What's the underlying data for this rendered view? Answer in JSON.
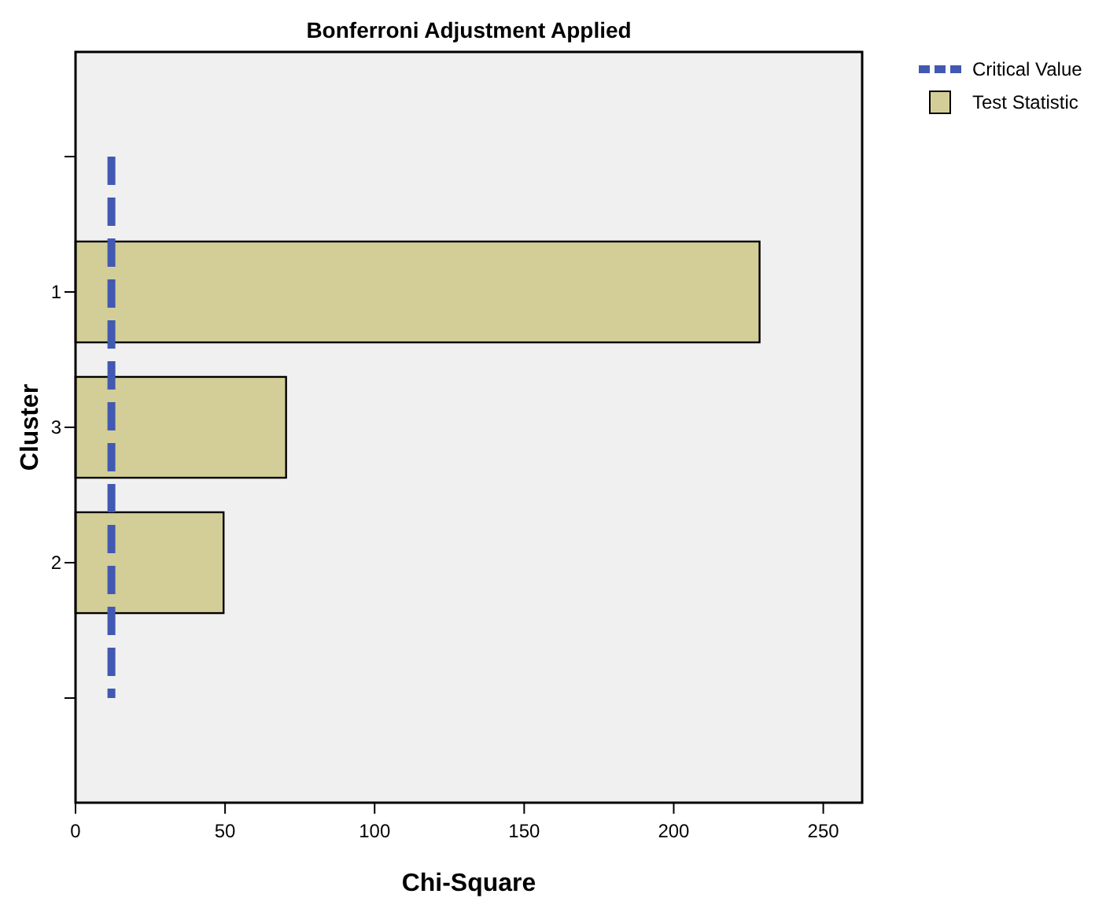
{
  "chart_data": {
    "type": "bar",
    "orientation": "horizontal",
    "title": "Bonferroni Adjustment Applied",
    "xlabel": "Chi-Square",
    "ylabel": "Cluster",
    "categories": [
      null,
      "1",
      "3",
      "2",
      null
    ],
    "series": [
      {
        "name": "Test Statistic",
        "color": "#d3ce98",
        "values": [
          null,
          228.7,
          70.4,
          49.5,
          null
        ]
      }
    ],
    "ref_lines": [
      {
        "axis": "x",
        "value": 12,
        "label": "Critical Value",
        "color": "#4259b2",
        "line_style": "dashed"
      }
    ],
    "xlim": [
      0,
      263
    ],
    "xticks": [
      0,
      50,
      100,
      150,
      200,
      250
    ],
    "grid": false,
    "legend": "top right"
  }
}
